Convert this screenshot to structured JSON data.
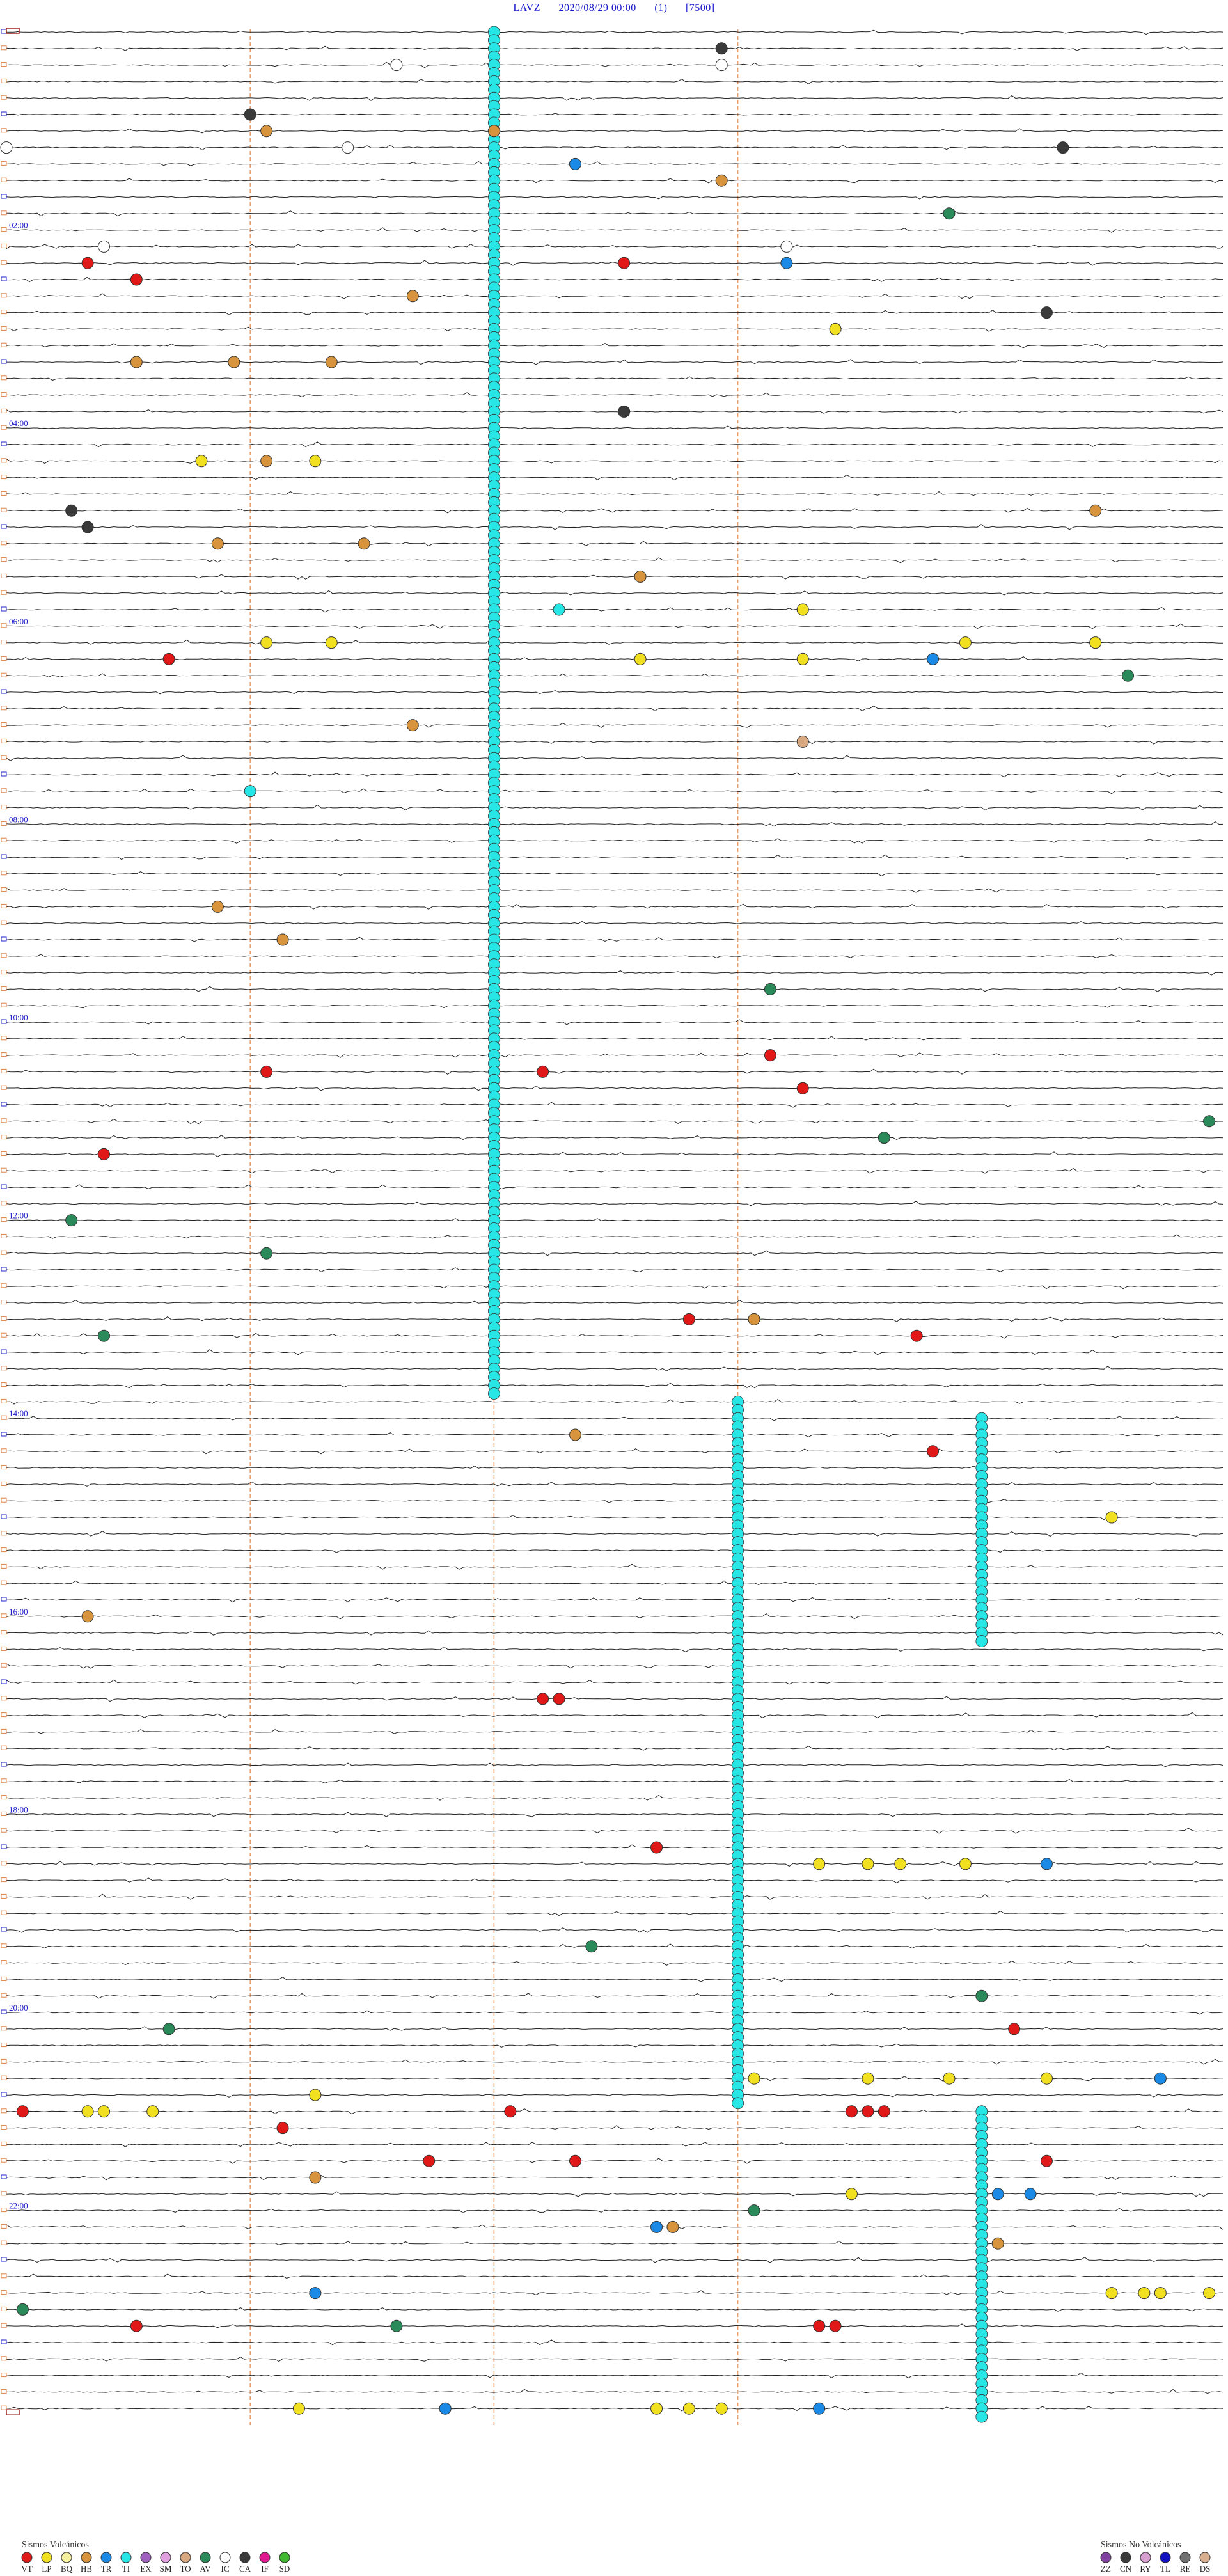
{
  "header": {
    "station": "LAVZ",
    "datetime": "2020/08/29 00:00",
    "channel": "(1)",
    "scale": "[7500]"
  },
  "chart_data": {
    "type": "scatter",
    "subtype": "helicorder",
    "trace_count": 145,
    "hour_labels": [
      {
        "label": "02:00",
        "trace": 12
      },
      {
        "label": "04:00",
        "trace": 24
      },
      {
        "label": "06:00",
        "trace": 36
      },
      {
        "label": "08:00",
        "trace": 48
      },
      {
        "label": "10:00",
        "trace": 60
      },
      {
        "label": "12:00",
        "trace": 72
      },
      {
        "label": "14:00",
        "trace": 84
      },
      {
        "label": "16:00",
        "trace": 96
      },
      {
        "label": "18:00",
        "trace": 108
      },
      {
        "label": "20:00",
        "trace": 120
      },
      {
        "label": "22:00",
        "trace": 132
      }
    ],
    "minute_markers": [
      15,
      30,
      45
    ],
    "event_columns": [
      {
        "minute": 30,
        "from_trace": 0,
        "to_trace": 83,
        "type": "TI"
      },
      {
        "minute": 45,
        "from_trace": 83,
        "to_trace": 126,
        "type": "TI"
      },
      {
        "minute": 60,
        "from_trace": 84,
        "to_trace": 98,
        "type": "TI"
      },
      {
        "minute": 60,
        "from_trace": 126,
        "to_trace": 145,
        "type": "TI"
      }
    ],
    "events": [
      {
        "t": 1,
        "m": 44,
        "type": "CA"
      },
      {
        "t": 2,
        "m": 24,
        "type": "IC"
      },
      {
        "t": 2,
        "m": 44,
        "type": "IC"
      },
      {
        "t": 5,
        "m": 15,
        "type": "CA"
      },
      {
        "t": 6,
        "m": 16,
        "type": "HB"
      },
      {
        "t": 6,
        "m": 30,
        "type": "HB"
      },
      {
        "t": 7,
        "m": 0,
        "type": "IC"
      },
      {
        "t": 7,
        "m": 21,
        "type": "IC"
      },
      {
        "t": 7,
        "m": 65,
        "type": "CA"
      },
      {
        "t": 8,
        "m": 35,
        "type": "TR"
      },
      {
        "t": 9,
        "m": 44,
        "type": "HB"
      },
      {
        "t": 11,
        "m": 58,
        "type": "AV"
      },
      {
        "t": 13,
        "m": 6,
        "type": "IC"
      },
      {
        "t": 13,
        "m": 48,
        "type": "IC"
      },
      {
        "t": 14,
        "m": 5,
        "type": "VT"
      },
      {
        "t": 14,
        "m": 38,
        "type": "VT"
      },
      {
        "t": 14,
        "m": 48,
        "type": "TR"
      },
      {
        "t": 15,
        "m": 8,
        "type": "VT"
      },
      {
        "t": 16,
        "m": 25,
        "type": "HB"
      },
      {
        "t": 17,
        "m": 64,
        "type": "CA"
      },
      {
        "t": 18,
        "m": 51,
        "type": "LP"
      },
      {
        "t": 20,
        "m": 8,
        "type": "HB"
      },
      {
        "t": 20,
        "m": 20,
        "type": "HB"
      },
      {
        "t": 20,
        "m": 14,
        "type": "HB"
      },
      {
        "t": 23,
        "m": 38,
        "type": "CA"
      },
      {
        "t": 26,
        "m": 12,
        "type": "LP"
      },
      {
        "t": 26,
        "m": 19,
        "type": "LP"
      },
      {
        "t": 26,
        "m": 16,
        "type": "HB"
      },
      {
        "t": 29,
        "m": 4,
        "type": "CA"
      },
      {
        "t": 29,
        "m": 67,
        "type": "HB"
      },
      {
        "t": 30,
        "m": 5,
        "type": "CA"
      },
      {
        "t": 31,
        "m": 13,
        "type": "HB"
      },
      {
        "t": 31,
        "m": 22,
        "type": "HB"
      },
      {
        "t": 33,
        "m": 39,
        "type": "HB"
      },
      {
        "t": 35,
        "m": 34,
        "type": "TI"
      },
      {
        "t": 35,
        "m": 49,
        "type": "LP"
      },
      {
        "t": 37,
        "m": 16,
        "type": "LP"
      },
      {
        "t": 37,
        "m": 20,
        "type": "LP"
      },
      {
        "t": 37,
        "m": 59,
        "type": "LP"
      },
      {
        "t": 37,
        "m": 67,
        "type": "LP"
      },
      {
        "t": 38,
        "m": 10,
        "type": "VT"
      },
      {
        "t": 38,
        "m": 39,
        "type": "LP"
      },
      {
        "t": 38,
        "m": 49,
        "type": "LP"
      },
      {
        "t": 38,
        "m": 57,
        "type": "TR"
      },
      {
        "t": 39,
        "m": 69,
        "type": "AV"
      },
      {
        "t": 42,
        "m": 25,
        "type": "HB"
      },
      {
        "t": 43,
        "m": 49,
        "type": "TO"
      },
      {
        "t": 46,
        "m": 15,
        "type": "TI"
      },
      {
        "t": 53,
        "m": 13,
        "type": "HB"
      },
      {
        "t": 55,
        "m": 17,
        "type": "HB"
      },
      {
        "t": 58,
        "m": 47,
        "type": "AV"
      },
      {
        "t": 62,
        "m": 47,
        "type": "VT"
      },
      {
        "t": 63,
        "m": 16,
        "type": "VT"
      },
      {
        "t": 63,
        "m": 33,
        "type": "VT"
      },
      {
        "t": 64,
        "m": 49,
        "type": "VT"
      },
      {
        "t": 66,
        "m": 74,
        "type": "AV"
      },
      {
        "t": 67,
        "m": 54,
        "type": "AV"
      },
      {
        "t": 68,
        "m": 6,
        "type": "VT"
      },
      {
        "t": 72,
        "m": 4,
        "type": "AV"
      },
      {
        "t": 74,
        "m": 16,
        "type": "AV"
      },
      {
        "t": 78,
        "m": 42,
        "type": "VT"
      },
      {
        "t": 78,
        "m": 46,
        "type": "HB"
      },
      {
        "t": 79,
        "m": 56,
        "type": "VT"
      },
      {
        "t": 79,
        "m": 6,
        "type": "AV"
      },
      {
        "t": 85,
        "m": 35,
        "type": "HB"
      },
      {
        "t": 86,
        "m": 57,
        "type": "VT"
      },
      {
        "t": 90,
        "m": 68,
        "type": "LP"
      },
      {
        "t": 96,
        "m": 5,
        "type": "HB"
      },
      {
        "t": 101,
        "m": 33,
        "type": "VT"
      },
      {
        "t": 101,
        "m": 34,
        "type": "VT"
      },
      {
        "t": 110,
        "m": 40,
        "type": "VT"
      },
      {
        "t": 111,
        "m": 50,
        "type": "LP"
      },
      {
        "t": 111,
        "m": 53,
        "type": "LP"
      },
      {
        "t": 111,
        "m": 55,
        "type": "LP"
      },
      {
        "t": 111,
        "m": 59,
        "type": "LP"
      },
      {
        "t": 111,
        "m": 64,
        "type": "TR"
      },
      {
        "t": 116,
        "m": 36,
        "type": "AV"
      },
      {
        "t": 119,
        "m": 60,
        "type": "AV"
      },
      {
        "t": 121,
        "m": 10,
        "type": "AV"
      },
      {
        "t": 121,
        "m": 62,
        "type": "VT"
      },
      {
        "t": 124,
        "m": 46,
        "type": "LP"
      },
      {
        "t": 124,
        "m": 53,
        "type": "LP"
      },
      {
        "t": 124,
        "m": 58,
        "type": "LP"
      },
      {
        "t": 124,
        "m": 64,
        "type": "LP"
      },
      {
        "t": 124,
        "m": 71,
        "type": "TR"
      },
      {
        "t": 125,
        "m": 19,
        "type": "LP"
      },
      {
        "t": 126,
        "m": 1,
        "type": "VT"
      },
      {
        "t": 126,
        "m": 5,
        "type": "LP"
      },
      {
        "t": 126,
        "m": 6,
        "type": "LP"
      },
      {
        "t": 126,
        "m": 9,
        "type": "LP"
      },
      {
        "t": 126,
        "m": 31,
        "type": "VT"
      },
      {
        "t": 126,
        "m": 52,
        "type": "VT"
      },
      {
        "t": 126,
        "m": 53,
        "type": "VT"
      },
      {
        "t": 126,
        "m": 54,
        "type": "VT"
      },
      {
        "t": 127,
        "m": 17,
        "type": "VT"
      },
      {
        "t": 129,
        "m": 26,
        "type": "VT"
      },
      {
        "t": 129,
        "m": 35,
        "type": "VT"
      },
      {
        "t": 129,
        "m": 64,
        "type": "VT"
      },
      {
        "t": 130,
        "m": 19,
        "type": "HB"
      },
      {
        "t": 131,
        "m": 52,
        "type": "LP"
      },
      {
        "t": 131,
        "m": 61,
        "type": "TR"
      },
      {
        "t": 131,
        "m": 63,
        "type": "TR"
      },
      {
        "t": 132,
        "m": 46,
        "type": "AV"
      },
      {
        "t": 133,
        "m": 40,
        "type": "TR"
      },
      {
        "t": 133,
        "m": 41,
        "type": "HB"
      },
      {
        "t": 134,
        "m": 61,
        "type": "HB"
      },
      {
        "t": 137,
        "m": 19,
        "type": "TR"
      },
      {
        "t": 137,
        "m": 68,
        "type": "LP"
      },
      {
        "t": 137,
        "m": 70,
        "type": "LP"
      },
      {
        "t": 137,
        "m": 71,
        "type": "LP"
      },
      {
        "t": 137,
        "m": 74,
        "type": "LP"
      },
      {
        "t": 138,
        "m": 1,
        "type": "AV"
      },
      {
        "t": 139,
        "m": 8,
        "type": "VT"
      },
      {
        "t": 139,
        "m": 24,
        "type": "AV"
      },
      {
        "t": 139,
        "m": 50,
        "type": "VT"
      },
      {
        "t": 139,
        "m": 51,
        "type": "VT"
      },
      {
        "t": 144,
        "m": 18,
        "type": "LP"
      },
      {
        "t": 144,
        "m": 27,
        "type": "TR"
      },
      {
        "t": 144,
        "m": 40,
        "type": "LP"
      },
      {
        "t": 144,
        "m": 42,
        "type": "LP"
      },
      {
        "t": 144,
        "m": 44,
        "type": "LP"
      },
      {
        "t": 144,
        "m": 50,
        "type": "TR"
      }
    ],
    "volcanic_legend": {
      "title": "Sismos Volcánicos",
      "items": [
        {
          "code": "VT",
          "color": "#e01818"
        },
        {
          "code": "LP",
          "color": "#f0e020"
        },
        {
          "code": "BQ",
          "color": "#f4f0a0"
        },
        {
          "code": "HB",
          "color": "#d8943c"
        },
        {
          "code": "TR",
          "color": "#1a8ae6"
        },
        {
          "code": "TI",
          "color": "#28e6e6"
        },
        {
          "code": "EX",
          "color": "#a060c0"
        },
        {
          "code": "SM",
          "color": "#e0a0e0"
        },
        {
          "code": "TO",
          "color": "#d8a880"
        },
        {
          "code": "AV",
          "color": "#2a8a5a"
        },
        {
          "code": "IC",
          "color": "#ffffff"
        },
        {
          "code": "CA",
          "color": "#3a3a3a"
        },
        {
          "code": "IF",
          "color": "#e01890"
        },
        {
          "code": "SD",
          "color": "#40b830"
        }
      ]
    },
    "nonvolcanic_legend": {
      "title": "Sismos No Volcánicos",
      "items": [
        {
          "code": "ZZ",
          "color": "#8040a0"
        },
        {
          "code": "CN",
          "color": "#3a3a3a"
        },
        {
          "code": "RY",
          "color": "#d8a0d0"
        },
        {
          "code": "TL",
          "color": "#1010c0"
        },
        {
          "code": "RE",
          "color": "#707070"
        },
        {
          "code": "DS",
          "color": "#d8b090"
        }
      ]
    }
  }
}
